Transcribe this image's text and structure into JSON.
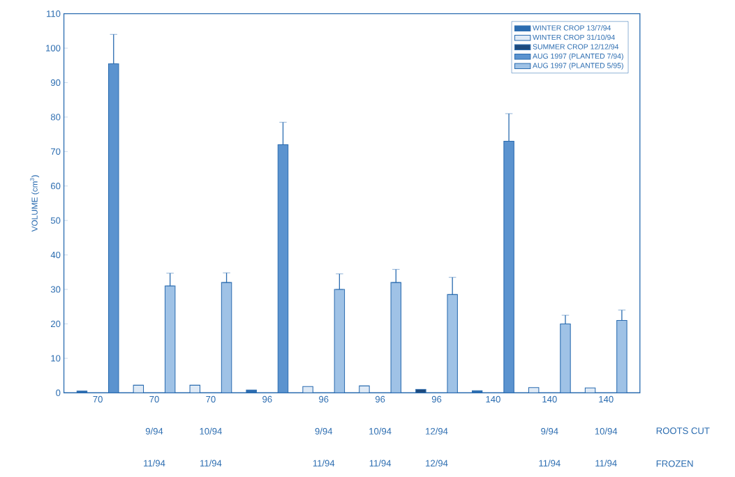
{
  "chart_data": {
    "type": "bar",
    "ylabel": "VOLUME (cm$^{3}$)",
    "categories": [
      "70",
      "70 9/94 11/94",
      "70 10/94 11/94",
      "96",
      "96 9/94 11/94",
      "96 10/94 11/94",
      "96 12/94 12/94",
      "140",
      "140 9/94 11/94",
      "140 10/94 11/94"
    ],
    "series": [
      {
        "name": "WINTER CROP 13/7/94",
        "color": "#2b6cb0",
        "values": [
          0.5,
          null,
          null,
          0.8,
          null,
          null,
          null,
          0.6,
          null,
          null
        ]
      },
      {
        "name": "WINTER CROP 31/10/94",
        "color": "#dfeaf6",
        "values": [
          null,
          2.2,
          2.2,
          null,
          1.8,
          2.0,
          null,
          null,
          1.5,
          1.4
        ]
      },
      {
        "name": "SUMMER CROP 12/12/94",
        "color": "#1d4a7d",
        "values": [
          null,
          null,
          null,
          null,
          null,
          null,
          1.0,
          null,
          null,
          null
        ]
      },
      {
        "name": "AUG 1997 (PLANTED 7/94)",
        "color": "#5b93cf",
        "values": [
          95.5,
          null,
          null,
          72,
          null,
          null,
          null,
          73,
          null,
          null
        ],
        "errors": [
          [
            95.5,
            104
          ],
          null,
          null,
          [
            72,
            78.5
          ],
          null,
          null,
          null,
          [
            73,
            81
          ],
          null,
          null
        ]
      },
      {
        "name": "AUG 1997 (PLANTED 5/95)",
        "color": "#9fc2e6",
        "values": [
          null,
          31,
          32,
          null,
          30,
          32,
          28.5,
          null,
          20,
          21
        ],
        "errors": [
          null,
          [
            31,
            34.7
          ],
          [
            32,
            34.8
          ],
          null,
          [
            30,
            34.5
          ],
          [
            32,
            35.8
          ],
          [
            28.5,
            33.5
          ],
          null,
          [
            20,
            22.5
          ],
          [
            21,
            24
          ]
        ]
      }
    ],
    "ylim": [
      0,
      110
    ],
    "yticks": [
      0,
      10,
      20,
      30,
      40,
      50,
      60,
      70,
      80,
      90,
      100,
      110
    ],
    "legend": "top right",
    "annotations": [
      "ROOTS CUT",
      "FROZEN"
    ]
  }
}
